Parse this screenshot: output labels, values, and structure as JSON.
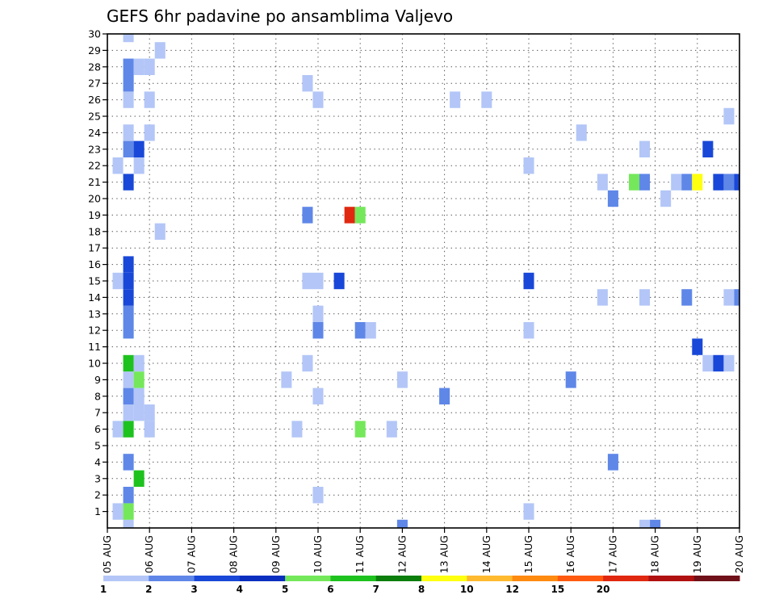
{
  "chart_data": {
    "type": "heatmap",
    "title": "GEFS 6hr padavine po ansamblima Valjevo",
    "x_tick_labels": [
      "05 AUG",
      "06 AUG",
      "07 AUG",
      "08 AUG",
      "09 AUG",
      "10 AUG",
      "11 AUG",
      "12 AUG",
      "13 AUG",
      "14 AUG",
      "15 AUG",
      "16 AUG",
      "17 AUG",
      "18 AUG",
      "19 AUG",
      "20 AUG"
    ],
    "y_tick_labels": [
      "1",
      "2",
      "3",
      "4",
      "5",
      "6",
      "7",
      "8",
      "9",
      "10",
      "11",
      "12",
      "13",
      "14",
      "15",
      "16",
      "17",
      "18",
      "19",
      "20",
      "21",
      "22",
      "23",
      "24",
      "25",
      "26",
      "27",
      "28",
      "29",
      "30"
    ],
    "xlim": [
      0,
      15
    ],
    "ylim": [
      0,
      30
    ],
    "x_step": 0.25,
    "grid": true,
    "colorbar": {
      "labels": [
        "1",
        "2",
        "3",
        "4",
        "5",
        "6",
        "7",
        "8",
        "10",
        "12",
        "15",
        "20"
      ],
      "colors": [
        "#b3c6f7",
        "#5f87e8",
        "#1948d8",
        "#0a2fc0",
        "#74e85a",
        "#1ec21e",
        "#0b7e0b",
        "#ffff10",
        "#ffba30",
        "#ff8a10",
        "#ff5a10",
        "#e02810",
        "#b01010",
        "#701018"
      ]
    },
    "cells": [
      {
        "t": 0.25,
        "m": 1,
        "c": 1
      },
      {
        "t": 0.25,
        "m": 6,
        "c": 1
      },
      {
        "t": 0.25,
        "m": 15,
        "c": 1
      },
      {
        "t": 0.25,
        "m": 22,
        "c": 1
      },
      {
        "t": 0.5,
        "m": 0,
        "c": 1
      },
      {
        "t": 0.5,
        "m": 1,
        "c": 5
      },
      {
        "t": 0.5,
        "m": 2,
        "c": 2
      },
      {
        "t": 0.5,
        "m": 4,
        "c": 2
      },
      {
        "t": 0.5,
        "m": 6,
        "c": 6
      },
      {
        "t": 0.5,
        "m": 7,
        "c": 1
      },
      {
        "t": 0.5,
        "m": 8,
        "c": 2
      },
      {
        "t": 0.5,
        "m": 9,
        "c": 1
      },
      {
        "t": 0.5,
        "m": 10,
        "c": 6
      },
      {
        "t": 0.5,
        "m": 12,
        "c": 2
      },
      {
        "t": 0.5,
        "m": 13,
        "c": 2
      },
      {
        "t": 0.5,
        "m": 14,
        "c": 3
      },
      {
        "t": 0.5,
        "m": 15,
        "c": 3
      },
      {
        "t": 0.5,
        "m": 16,
        "c": 3
      },
      {
        "t": 0.5,
        "m": 21,
        "c": 3
      },
      {
        "t": 0.5,
        "m": 23,
        "c": 2
      },
      {
        "t": 0.5,
        "m": 24,
        "c": 1
      },
      {
        "t": 0.5,
        "m": 26,
        "c": 1
      },
      {
        "t": 0.5,
        "m": 27,
        "c": 2
      },
      {
        "t": 0.5,
        "m": 28,
        "c": 2
      },
      {
        "t": 0.5,
        "m": 30,
        "c": 1
      },
      {
        "t": 0.75,
        "m": 3,
        "c": 6
      },
      {
        "t": 0.75,
        "m": 7,
        "c": 1
      },
      {
        "t": 0.75,
        "m": 8,
        "c": 1
      },
      {
        "t": 0.75,
        "m": 9,
        "c": 5
      },
      {
        "t": 0.75,
        "m": 10,
        "c": 1
      },
      {
        "t": 0.75,
        "m": 22,
        "c": 1
      },
      {
        "t": 0.75,
        "m": 23,
        "c": 3
      },
      {
        "t": 0.75,
        "m": 28,
        "c": 1
      },
      {
        "t": 1.0,
        "m": 6,
        "c": 1
      },
      {
        "t": 1.0,
        "m": 7,
        "c": 1
      },
      {
        "t": 1.0,
        "m": 24,
        "c": 1
      },
      {
        "t": 1.0,
        "m": 26,
        "c": 1
      },
      {
        "t": 1.0,
        "m": 28,
        "c": 1
      },
      {
        "t": 1.25,
        "m": 18,
        "c": 1
      },
      {
        "t": 1.25,
        "m": 29,
        "c": 1
      },
      {
        "t": 4.25,
        "m": 9,
        "c": 1
      },
      {
        "t": 4.5,
        "m": 6,
        "c": 1
      },
      {
        "t": 4.75,
        "m": 10,
        "c": 1
      },
      {
        "t": 4.75,
        "m": 15,
        "c": 1
      },
      {
        "t": 4.75,
        "m": 19,
        "c": 2
      },
      {
        "t": 4.75,
        "m": 27,
        "c": 1
      },
      {
        "t": 5.0,
        "m": 2,
        "c": 1
      },
      {
        "t": 5.0,
        "m": 8,
        "c": 1
      },
      {
        "t": 5.0,
        "m": 12,
        "c": 2
      },
      {
        "t": 5.0,
        "m": 13,
        "c": 1
      },
      {
        "t": 5.0,
        "m": 15,
        "c": 1
      },
      {
        "t": 5.0,
        "m": 26,
        "c": 1
      },
      {
        "t": 5.5,
        "m": 15,
        "c": 3
      },
      {
        "t": 5.75,
        "m": 19,
        "c": 12
      },
      {
        "t": 6.0,
        "m": 6,
        "c": 5
      },
      {
        "t": 6.0,
        "m": 12,
        "c": 2
      },
      {
        "t": 6.0,
        "m": 19,
        "c": 5
      },
      {
        "t": 6.25,
        "m": 12,
        "c": 1
      },
      {
        "t": 6.75,
        "m": 6,
        "c": 1
      },
      {
        "t": 7.0,
        "m": 0,
        "c": 2
      },
      {
        "t": 7.0,
        "m": 9,
        "c": 1
      },
      {
        "t": 8.0,
        "m": 8,
        "c": 2
      },
      {
        "t": 8.25,
        "m": 26,
        "c": 1
      },
      {
        "t": 9.0,
        "m": 26,
        "c": 1
      },
      {
        "t": 10.0,
        "m": 1,
        "c": 1
      },
      {
        "t": 10.0,
        "m": 12,
        "c": 1
      },
      {
        "t": 10.0,
        "m": 15,
        "c": 3
      },
      {
        "t": 10.0,
        "m": 22,
        "c": 1
      },
      {
        "t": 11.0,
        "m": 9,
        "c": 2
      },
      {
        "t": 11.25,
        "m": 24,
        "c": 1
      },
      {
        "t": 11.75,
        "m": 14,
        "c": 1
      },
      {
        "t": 11.75,
        "m": 21,
        "c": 1
      },
      {
        "t": 12.0,
        "m": 4,
        "c": 2
      },
      {
        "t": 12.0,
        "m": 20,
        "c": 2
      },
      {
        "t": 12.5,
        "m": 21,
        "c": 5
      },
      {
        "t": 12.75,
        "m": 0,
        "c": 1
      },
      {
        "t": 12.75,
        "m": 14,
        "c": 1
      },
      {
        "t": 12.75,
        "m": 21,
        "c": 2
      },
      {
        "t": 12.75,
        "m": 23,
        "c": 1
      },
      {
        "t": 13.0,
        "m": 0,
        "c": 2
      },
      {
        "t": 13.25,
        "m": 20,
        "c": 1
      },
      {
        "t": 13.5,
        "m": 21,
        "c": 1
      },
      {
        "t": 13.75,
        "m": 14,
        "c": 2
      },
      {
        "t": 13.75,
        "m": 21,
        "c": 2
      },
      {
        "t": 14.0,
        "m": 11,
        "c": 3
      },
      {
        "t": 14.0,
        "m": 21,
        "c": 8
      },
      {
        "t": 14.25,
        "m": 10,
        "c": 1
      },
      {
        "t": 14.25,
        "m": 23,
        "c": 3
      },
      {
        "t": 14.5,
        "m": 10,
        "c": 3
      },
      {
        "t": 14.5,
        "m": 21,
        "c": 3
      },
      {
        "t": 14.75,
        "m": 10,
        "c": 1
      },
      {
        "t": 14.75,
        "m": 14,
        "c": 1
      },
      {
        "t": 14.75,
        "m": 21,
        "c": 2
      },
      {
        "t": 14.75,
        "m": 25,
        "c": 1
      },
      {
        "t": 15.0,
        "m": 14,
        "c": 2
      },
      {
        "t": 15.0,
        "m": 21,
        "c": 3
      }
    ]
  }
}
